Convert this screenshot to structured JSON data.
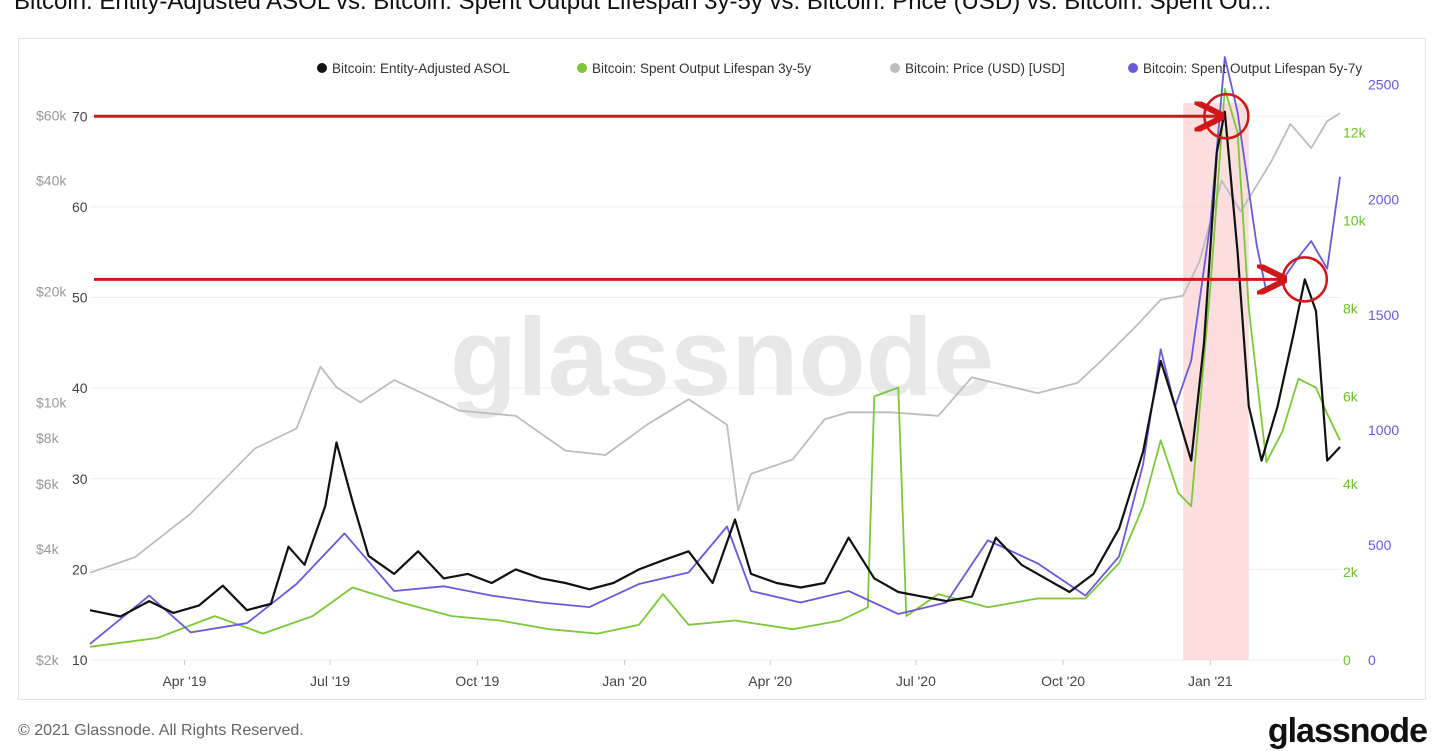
{
  "title": "Bitcoin: Entity-Adjusted ASOL vs. Bitcoin: Spent Output Lifespan 3y-5y vs. Bitcoin: Price (USD) vs. Bitcoin: Spent Ou...",
  "footer": {
    "copyright": "© 2021 Glassnode. All Rights Reserved.",
    "logo": "glassnode"
  },
  "watermark": "glassnode",
  "colors": {
    "asol": "#111111",
    "sol35": "#7cc83a",
    "price": "#bdbdbd",
    "sol57": "#6a5ad8",
    "highlight": "#fbd3d3",
    "annotation": "#d0181b"
  },
  "chart_data": {
    "type": "line",
    "title": "",
    "legend_position": "top-right",
    "grid": true,
    "x_labels": [
      "Apr '19",
      "Jul '19",
      "Oct '19",
      "Jan '20",
      "Apr '20",
      "Jul '20",
      "Oct '20",
      "Jan '21"
    ],
    "x_range": [
      "2019-02-01",
      "2021-03-23"
    ],
    "highlight_range": [
      "2020-12-15",
      "2021-01-25"
    ],
    "axes": {
      "asol": {
        "ticks": [
          "10",
          "20",
          "30",
          "40",
          "50",
          "60",
          "70"
        ],
        "range": [
          10,
          74
        ]
      },
      "price": {
        "ticks": [
          "$2k",
          "$4k",
          "$6k",
          "$8k",
          "$10k",
          "$20k",
          "$40k",
          "$60k"
        ],
        "scale": "log",
        "range": [
          2000,
          75000
        ]
      },
      "sol35": {
        "ticks": [
          "0",
          "2k",
          "4k",
          "6k",
          "8k",
          "10k",
          "12k"
        ],
        "range": [
          0,
          13200
        ]
      },
      "sol57": {
        "ticks": [
          "0",
          "500",
          "1000",
          "1500",
          "2000",
          "2500"
        ],
        "range": [
          0,
          2520
        ]
      }
    },
    "series": [
      {
        "name": "Bitcoin: Entity-Adjusted ASOL",
        "axis": "asol",
        "points": [
          [
            "2019-02-01",
            15.5
          ],
          [
            "2019-02-20",
            14.8
          ],
          [
            "2019-03-10",
            16.5
          ],
          [
            "2019-03-25",
            15.2
          ],
          [
            "2019-04-10",
            16.0
          ],
          [
            "2019-04-25",
            18.2
          ],
          [
            "2019-05-10",
            15.5
          ],
          [
            "2019-05-25",
            16.2
          ],
          [
            "2019-06-05",
            22.5
          ],
          [
            "2019-06-15",
            20.5
          ],
          [
            "2019-06-28",
            27.0
          ],
          [
            "2019-07-05",
            34.0
          ],
          [
            "2019-07-15",
            27.5
          ],
          [
            "2019-07-25",
            21.5
          ],
          [
            "2019-08-10",
            19.5
          ],
          [
            "2019-08-25",
            22.0
          ],
          [
            "2019-09-10",
            19.0
          ],
          [
            "2019-09-25",
            19.5
          ],
          [
            "2019-10-10",
            18.5
          ],
          [
            "2019-10-25",
            20.0
          ],
          [
            "2019-11-10",
            19.0
          ],
          [
            "2019-11-25",
            18.5
          ],
          [
            "2019-12-10",
            17.8
          ],
          [
            "2019-12-25",
            18.5
          ],
          [
            "2020-01-10",
            20.0
          ],
          [
            "2020-01-25",
            21.0
          ],
          [
            "2020-02-10",
            22.0
          ],
          [
            "2020-02-25",
            18.5
          ],
          [
            "2020-03-10",
            25.5
          ],
          [
            "2020-03-20",
            19.5
          ],
          [
            "2020-04-05",
            18.5
          ],
          [
            "2020-04-20",
            18.0
          ],
          [
            "2020-05-05",
            18.5
          ],
          [
            "2020-05-20",
            23.5
          ],
          [
            "2020-06-05",
            19.0
          ],
          [
            "2020-06-20",
            17.5
          ],
          [
            "2020-07-05",
            17.0
          ],
          [
            "2020-07-20",
            16.5
          ],
          [
            "2020-08-05",
            17.0
          ],
          [
            "2020-08-20",
            23.5
          ],
          [
            "2020-09-05",
            20.5
          ],
          [
            "2020-09-20",
            19.0
          ],
          [
            "2020-10-05",
            17.5
          ],
          [
            "2020-10-20",
            19.5
          ],
          [
            "2020-11-05",
            24.5
          ],
          [
            "2020-11-20",
            33.0
          ],
          [
            "2020-12-01",
            43.0
          ],
          [
            "2020-12-10",
            38.0
          ],
          [
            "2020-12-20",
            32.0
          ],
          [
            "2020-12-28",
            45.0
          ],
          [
            "2021-01-05",
            66.0
          ],
          [
            "2021-01-10",
            70.5
          ],
          [
            "2021-01-18",
            55.0
          ],
          [
            "2021-01-25",
            38.0
          ],
          [
            "2021-02-02",
            32.0
          ],
          [
            "2021-02-12",
            38.0
          ],
          [
            "2021-02-22",
            46.0
          ],
          [
            "2021-03-01",
            52.0
          ],
          [
            "2021-03-08",
            48.5
          ],
          [
            "2021-03-15",
            32.0
          ],
          [
            "2021-03-23",
            33.5
          ]
        ]
      },
      {
        "name": "Bitcoin: Spent Output Lifespan 3y-5y",
        "axis": "sol35",
        "points": [
          [
            "2019-02-01",
            300
          ],
          [
            "2019-03-15",
            500
          ],
          [
            "2019-04-20",
            1000
          ],
          [
            "2019-05-20",
            600
          ],
          [
            "2019-06-20",
            1000
          ],
          [
            "2019-07-15",
            1650
          ],
          [
            "2019-08-15",
            1300
          ],
          [
            "2019-09-15",
            1000
          ],
          [
            "2019-10-15",
            900
          ],
          [
            "2019-11-15",
            700
          ],
          [
            "2019-12-15",
            600
          ],
          [
            "2020-01-10",
            800
          ],
          [
            "2020-01-25",
            1500
          ],
          [
            "2020-02-10",
            800
          ],
          [
            "2020-03-10",
            900
          ],
          [
            "2020-04-15",
            700
          ],
          [
            "2020-05-15",
            900
          ],
          [
            "2020-06-01",
            1200
          ],
          [
            "2020-06-05",
            6000
          ],
          [
            "2020-06-20",
            6200
          ],
          [
            "2020-06-25",
            1000
          ],
          [
            "2020-07-15",
            1500
          ],
          [
            "2020-08-15",
            1200
          ],
          [
            "2020-09-15",
            1400
          ],
          [
            "2020-10-15",
            1400
          ],
          [
            "2020-11-05",
            2200
          ],
          [
            "2020-11-20",
            3500
          ],
          [
            "2020-12-01",
            5000
          ],
          [
            "2020-12-12",
            3800
          ],
          [
            "2020-12-20",
            3500
          ],
          [
            "2021-01-01",
            8500
          ],
          [
            "2021-01-10",
            13000
          ],
          [
            "2021-01-18",
            12000
          ],
          [
            "2021-01-25",
            8000
          ],
          [
            "2021-02-05",
            4500
          ],
          [
            "2021-02-15",
            5200
          ],
          [
            "2021-02-25",
            6400
          ],
          [
            "2021-03-08",
            6200
          ],
          [
            "2021-03-15",
            5600
          ],
          [
            "2021-03-23",
            5000
          ]
        ]
      },
      {
        "name": "Bitcoin: Price (USD) [USD]",
        "axis": "price",
        "points": [
          [
            "2019-02-01",
            3450
          ],
          [
            "2019-03-01",
            3800
          ],
          [
            "2019-04-05",
            5000
          ],
          [
            "2019-05-15",
            7500
          ],
          [
            "2019-06-10",
            8500
          ],
          [
            "2019-06-25",
            12500
          ],
          [
            "2019-07-05",
            11000
          ],
          [
            "2019-07-20",
            10000
          ],
          [
            "2019-08-10",
            11500
          ],
          [
            "2019-09-20",
            9500
          ],
          [
            "2019-10-25",
            9200
          ],
          [
            "2019-11-25",
            7400
          ],
          [
            "2019-12-20",
            7200
          ],
          [
            "2020-01-15",
            8700
          ],
          [
            "2020-02-10",
            10200
          ],
          [
            "2020-03-05",
            8700
          ],
          [
            "2020-03-12",
            5100
          ],
          [
            "2020-03-20",
            6400
          ],
          [
            "2020-04-15",
            7000
          ],
          [
            "2020-05-05",
            9000
          ],
          [
            "2020-05-20",
            9400
          ],
          [
            "2020-06-15",
            9400
          ],
          [
            "2020-07-15",
            9200
          ],
          [
            "2020-08-05",
            11700
          ],
          [
            "2020-09-15",
            10600
          ],
          [
            "2020-10-10",
            11300
          ],
          [
            "2020-10-25",
            13000
          ],
          [
            "2020-11-15",
            16000
          ],
          [
            "2020-12-01",
            19000
          ],
          [
            "2020-12-15",
            19500
          ],
          [
            "2020-12-25",
            24000
          ],
          [
            "2021-01-08",
            40000
          ],
          [
            "2021-01-20",
            33000
          ],
          [
            "2021-02-08",
            45000
          ],
          [
            "2021-02-20",
            57000
          ],
          [
            "2021-03-05",
            49000
          ],
          [
            "2021-03-15",
            58000
          ],
          [
            "2021-03-23",
            61000
          ]
        ]
      },
      {
        "name": "Bitcoin: Spent Output Lifespan 5y-7y",
        "axis": "sol57",
        "points": [
          [
            "2019-02-01",
            70
          ],
          [
            "2019-03-10",
            280
          ],
          [
            "2019-04-05",
            120
          ],
          [
            "2019-05-10",
            160
          ],
          [
            "2019-06-10",
            330
          ],
          [
            "2019-07-10",
            550
          ],
          [
            "2019-08-10",
            300
          ],
          [
            "2019-09-10",
            320
          ],
          [
            "2019-10-10",
            280
          ],
          [
            "2019-11-10",
            250
          ],
          [
            "2019-12-10",
            230
          ],
          [
            "2020-01-10",
            330
          ],
          [
            "2020-02-10",
            380
          ],
          [
            "2020-03-05",
            580
          ],
          [
            "2020-03-20",
            300
          ],
          [
            "2020-04-20",
            250
          ],
          [
            "2020-05-20",
            300
          ],
          [
            "2020-06-20",
            200
          ],
          [
            "2020-07-20",
            250
          ],
          [
            "2020-08-15",
            520
          ],
          [
            "2020-09-15",
            420
          ],
          [
            "2020-10-15",
            280
          ],
          [
            "2020-11-05",
            450
          ],
          [
            "2020-11-20",
            850
          ],
          [
            "2020-12-01",
            1350
          ],
          [
            "2020-12-10",
            1100
          ],
          [
            "2020-12-20",
            1300
          ],
          [
            "2021-01-01",
            1900
          ],
          [
            "2021-01-10",
            2620
          ],
          [
            "2021-01-18",
            2380
          ],
          [
            "2021-01-30",
            1800
          ],
          [
            "2021-02-05",
            1600
          ],
          [
            "2021-02-15",
            1650
          ],
          [
            "2021-02-25",
            1750
          ],
          [
            "2021-03-05",
            1820
          ],
          [
            "2021-03-15",
            1700
          ],
          [
            "2021-03-23",
            2100
          ]
        ]
      }
    ],
    "annotations": [
      {
        "type": "arrow",
        "from_date": "2019-02-01",
        "to_date": "2021-01-08",
        "value": 70,
        "axis": "asol"
      },
      {
        "type": "circle",
        "date": "2021-01-11",
        "value": 70,
        "axis": "asol"
      },
      {
        "type": "arrow",
        "from_date": "2019-02-01",
        "to_date": "2021-02-16",
        "value": 52,
        "axis": "asol"
      },
      {
        "type": "circle",
        "date": "2021-03-01",
        "value": 52,
        "axis": "asol"
      }
    ]
  }
}
